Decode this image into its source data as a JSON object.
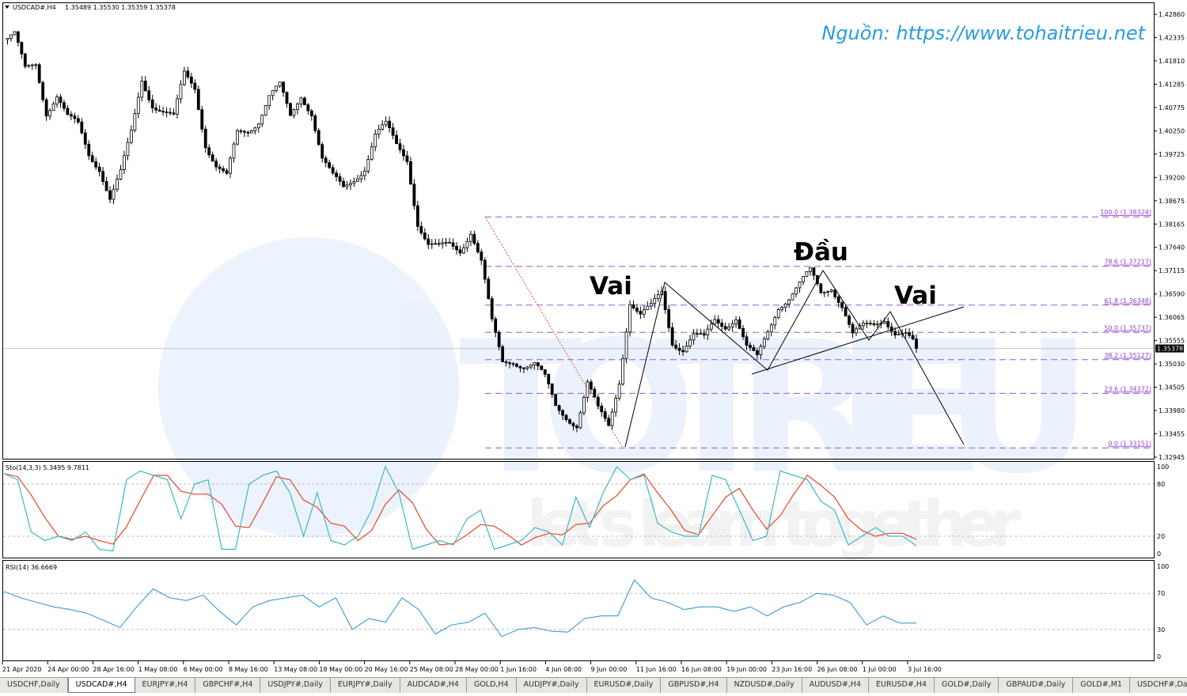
{
  "header": {
    "symbol_label": "USDCAD#,H4",
    "ohlc": "1.35489 1.35530 1.35359 1.35378",
    "source_watermark": "Nguồn: https://www.tohaitrieu.net",
    "logo_watermark": "TOTRIEU",
    "logo_tagline": "let's learn together"
  },
  "chart_data": [
    {
      "type": "candlestick",
      "title": "USDCAD#,H4",
      "ylim": [
        1.32945,
        1.4286
      ],
      "y_ticks": [
        "1.42860",
        "1.42335",
        "1.41810",
        "1.41285",
        "1.40775",
        "1.40250",
        "1.39725",
        "1.39200",
        "1.38675",
        "1.38165",
        "1.37640",
        "1.37115",
        "1.36590",
        "1.36065",
        "1.35555",
        "1.35030",
        "1.34505",
        "1.33980",
        "1.33455",
        "1.32945"
      ],
      "x_ticks": [
        "21 Apr 2020",
        "24 Apr 00:00",
        "28 Apr 16:00",
        "1 May 08:00",
        "6 May 00:00",
        "8 May 16:00",
        "13 May 08:00",
        "18 May 00:00",
        "20 May 16:00",
        "25 May 08:00",
        "28 May 00:00",
        "1 Jun 16:00",
        "4 Jun 08:00",
        "9 Jun 00:00",
        "11 Jun 16:00",
        "16 Jun 08:00",
        "19 Jun 00:00",
        "23 Jun 16:00",
        "26 Jun 08:00",
        "1 Jul 00:00",
        "3 Jul 16:00"
      ],
      "current_price": "1.35378",
      "approx_closes": [
        1.4229,
        1.4238,
        1.4159,
        1.4176,
        1.407,
        1.4105,
        1.4052,
        1.4035,
        1.3973,
        1.3946,
        1.3875,
        1.3928,
        1.4017,
        1.4141,
        1.4088,
        1.407,
        1.4052,
        1.415,
        1.4123,
        1.3999,
        1.3946,
        1.3919,
        1.4017,
        1.4026,
        1.4052,
        1.4105,
        1.4123,
        1.4052,
        1.4105,
        1.407,
        1.3964,
        1.3919,
        1.3893,
        1.3919,
        1.3946,
        1.4017,
        1.4035,
        1.399,
        1.3964,
        1.3822,
        1.3769,
        1.376,
        1.3769,
        1.376,
        1.3804,
        1.3733,
        1.3592,
        1.3503,
        1.3512,
        1.3503,
        1.3503,
        1.3468,
        1.3406,
        1.3388,
        1.337,
        1.3459,
        1.3397,
        1.3362,
        1.3468,
        1.3645,
        1.361,
        1.3627,
        1.3663,
        1.3556,
        1.3539,
        1.3565,
        1.3556,
        1.3601,
        1.3592,
        1.361,
        1.3539,
        1.3512,
        1.3574,
        1.3636,
        1.3654,
        1.368,
        1.3707,
        1.3663,
        1.368,
        1.3636,
        1.3565,
        1.3583,
        1.3592,
        1.361,
        1.3574,
        1.3565,
        1.3538
      ],
      "fibonacci": [
        {
          "label": "100.0 (1.38324)",
          "price": 1.38324
        },
        {
          "label": "78.6 (1.37217)",
          "price": 1.37217
        },
        {
          "label": "61.8 (1.36348)",
          "price": 1.36348
        },
        {
          "label": "50.0 (1.35737)",
          "price": 1.35737
        },
        {
          "label": "38.2 (1.35127)",
          "price": 1.35127
        },
        {
          "label": "23.6 (1.34372)",
          "price": 1.34372
        },
        {
          "label": "0.0 (1.33151)",
          "price": 1.33151
        }
      ],
      "annotations": [
        {
          "text": "Vai",
          "role": "left-shoulder"
        },
        {
          "text": "Đầu",
          "role": "head"
        },
        {
          "text": "Vai",
          "role": "right-shoulder"
        }
      ],
      "colors": {
        "fib": "#9b59d0",
        "fib_trend": "#e0502a",
        "candle": "#000000",
        "watermark": "#2a9be0"
      }
    },
    {
      "type": "line",
      "title": "Sto(14,3,3) 5.3495 9.7811",
      "ylim": [
        0,
        100
      ],
      "y_ticks": [
        "100",
        "80",
        "20",
        "0"
      ],
      "levels": [
        80,
        20
      ],
      "main_values": [
        92,
        85,
        25,
        15,
        20,
        15,
        25,
        5,
        3,
        85,
        95,
        90,
        85,
        40,
        80,
        85,
        5,
        5,
        80,
        90,
        95,
        70,
        20,
        70,
        15,
        10,
        20,
        50,
        100,
        70,
        5,
        10,
        15,
        10,
        40,
        50,
        5,
        10,
        15,
        30,
        25,
        10,
        65,
        30,
        70,
        100,
        85,
        90,
        35,
        25,
        20,
        20,
        90,
        85,
        50,
        15,
        20,
        95,
        90,
        85,
        60,
        50,
        10,
        20,
        30,
        20,
        20,
        9
      ],
      "colors": {
        "main": "#3fb8c0",
        "signal": "#e8462a"
      }
    },
    {
      "type": "line",
      "title": "RSI(14) 36.6669",
      "ylim": [
        0,
        100
      ],
      "y_ticks": [
        "100",
        "70",
        "30",
        "0"
      ],
      "levels": [
        70,
        30
      ],
      "values": [
        72,
        65,
        60,
        55,
        52,
        48,
        40,
        32,
        55,
        75,
        65,
        62,
        68,
        50,
        35,
        55,
        62,
        65,
        68,
        55,
        65,
        30,
        42,
        38,
        65,
        52,
        25,
        35,
        38,
        48,
        22,
        30,
        32,
        28,
        27,
        42,
        45,
        45,
        85,
        65,
        60,
        52,
        55,
        55,
        50,
        55,
        45,
        55,
        60,
        70,
        68,
        60,
        35,
        45,
        37,
        37
      ],
      "colors": {
        "line": "#3c9ad8"
      }
    }
  ],
  "tabs": [
    {
      "label": "USDCHF,Daily"
    },
    {
      "label": "USDCAD#,H4",
      "active": true
    },
    {
      "label": "EURJPY#,H4"
    },
    {
      "label": "GBPCHF#,H4"
    },
    {
      "label": "USDJPY#,Daily"
    },
    {
      "label": "EURJPY#,Daily"
    },
    {
      "label": "AUDCAD#,H4"
    },
    {
      "label": "GOLD,H4"
    },
    {
      "label": "AUDJPY#,Daily"
    },
    {
      "label": "EURUSD#,Daily"
    },
    {
      "label": "GBPUSD#,H4"
    },
    {
      "label": "NZDUSD#,Daily"
    },
    {
      "label": "AUDUSD#,H4"
    },
    {
      "label": "EURUSD#,H4"
    },
    {
      "label": "GOLD#,Daily"
    },
    {
      "label": "GBPAUD#,Daily"
    },
    {
      "label": "GOLD#,M1"
    },
    {
      "label": "USDCHF#,Daily"
    }
  ]
}
